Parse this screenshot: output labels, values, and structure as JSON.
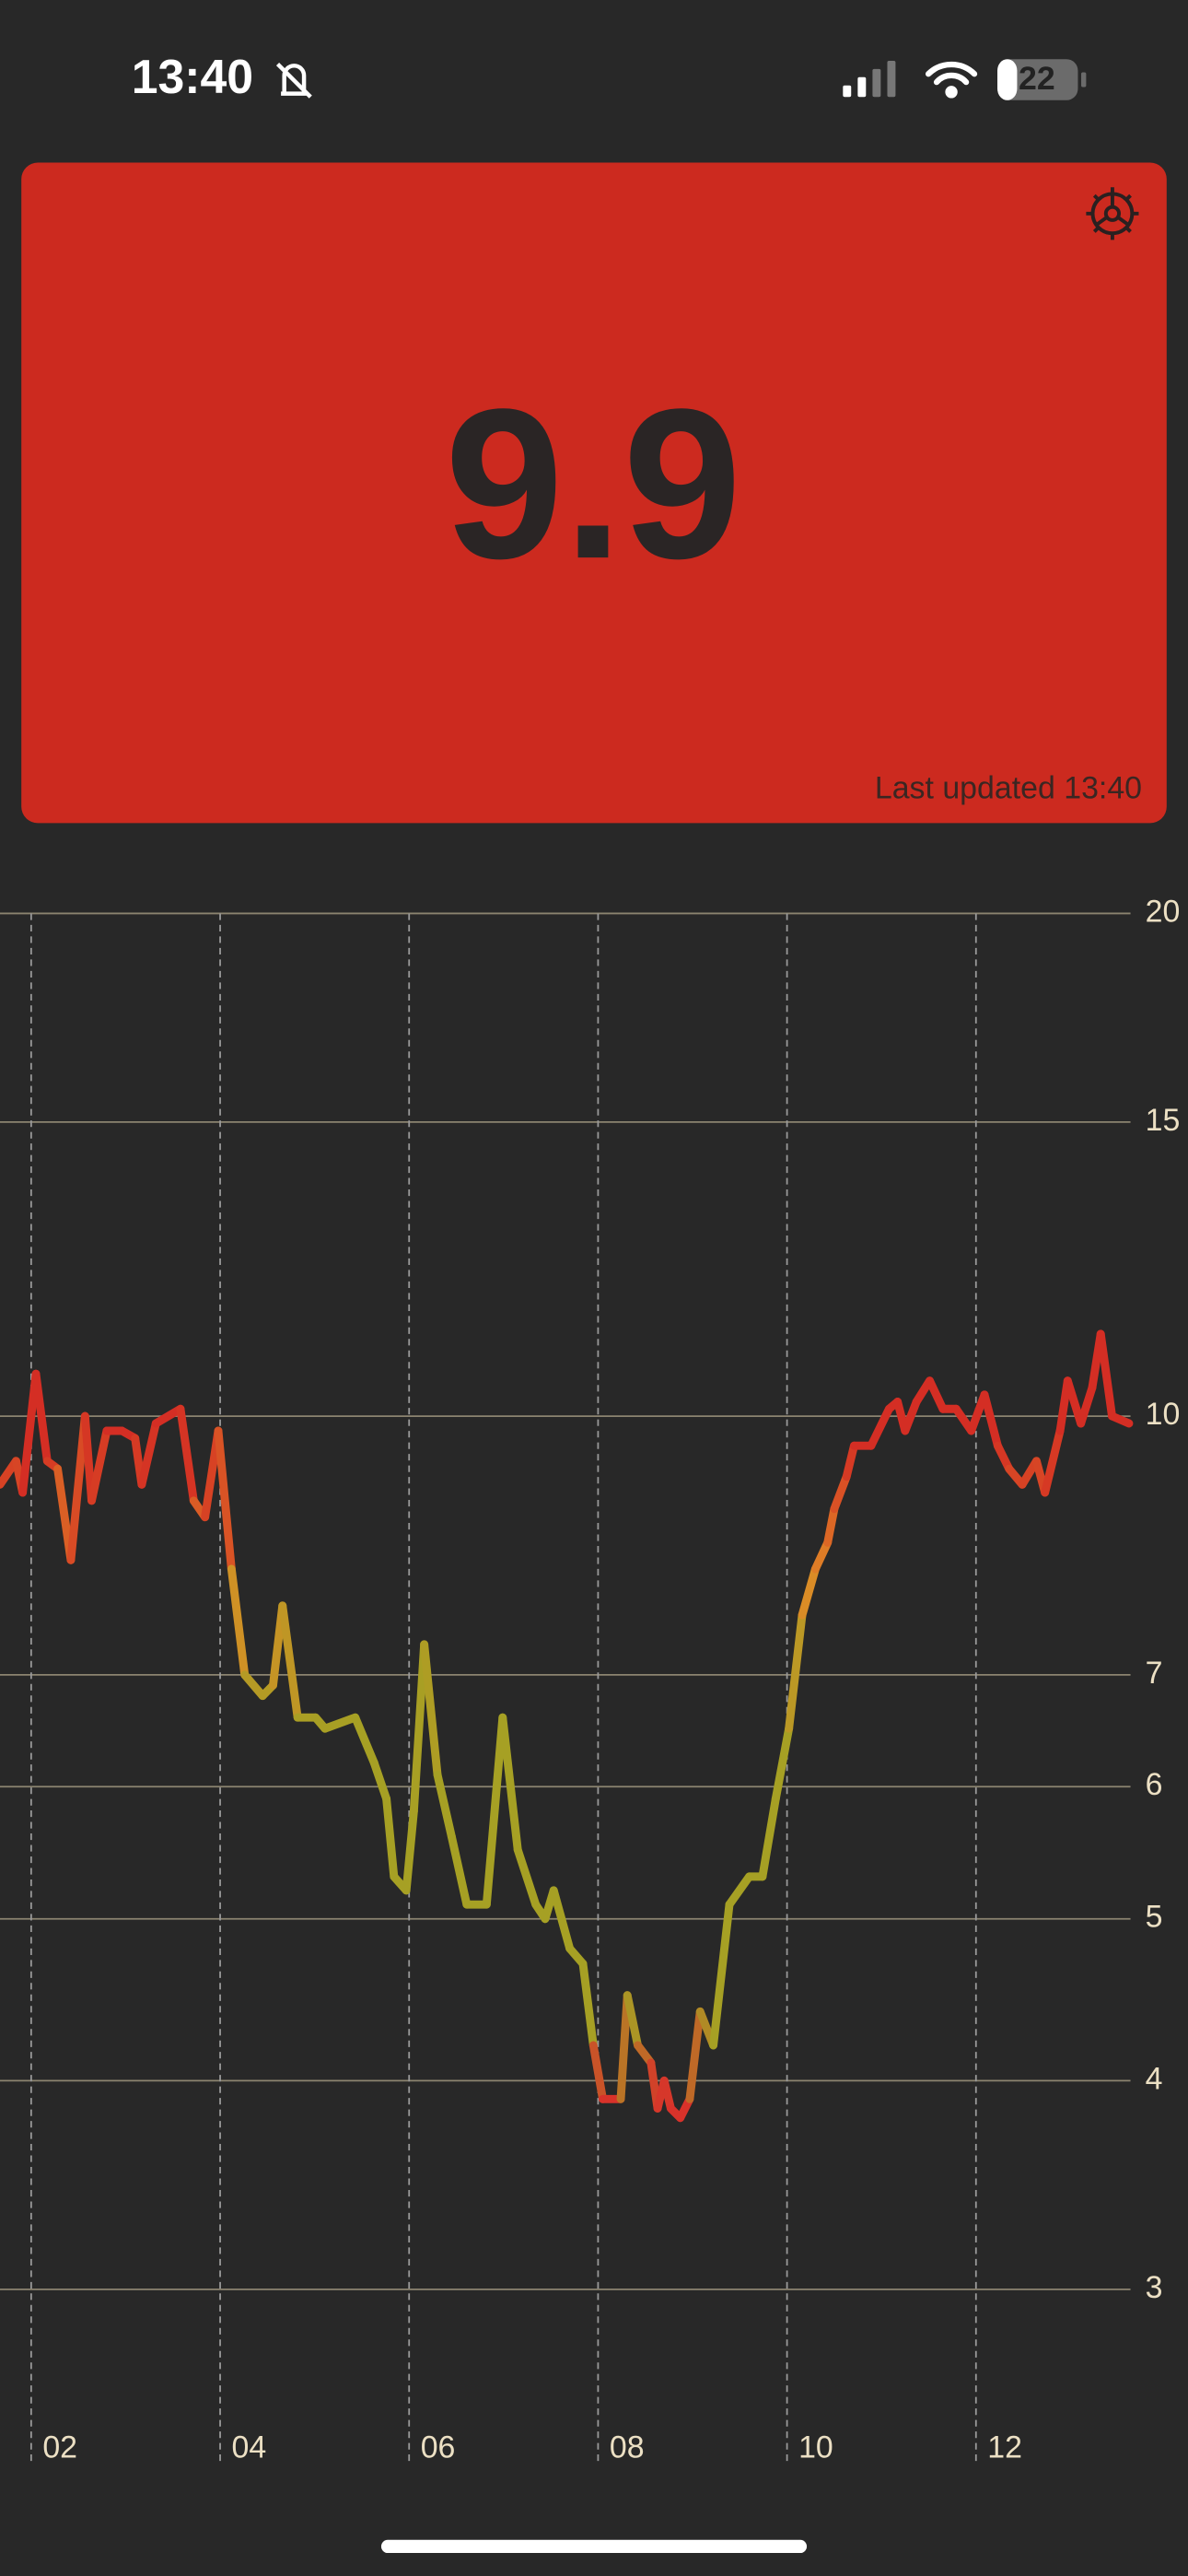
{
  "status_bar": {
    "time": "13:40",
    "battery": "22"
  },
  "card": {
    "value": 9.9,
    "updated": "Last updated 13:40"
  },
  "chart_data": {
    "type": "line",
    "log_y": true,
    "grid": true,
    "x": [
      1.67,
      1.84,
      1.91,
      2.05,
      2.17,
      2.28,
      2.42,
      2.57,
      2.64,
      2.8,
      2.96,
      3.1,
      3.17,
      3.32,
      3.58,
      3.72,
      3.84,
      3.98,
      4.12,
      4.26,
      4.45,
      4.56,
      4.66,
      4.82,
      5.01,
      5.11,
      5.43,
      5.63,
      5.76,
      5.84,
      5.97,
      6.05,
      6.16,
      6.3,
      6.45,
      6.61,
      6.82,
      6.99,
      7.15,
      7.34,
      7.44,
      7.53,
      7.7,
      7.84,
      7.95,
      8.05,
      8.24,
      8.31,
      8.42,
      8.56,
      8.63,
      8.7,
      8.77,
      8.87,
      8.97,
      9.08,
      9.22,
      9.39,
      9.6,
      9.74,
      9.88,
      10.02,
      10.16,
      10.3,
      10.43,
      10.5,
      10.63,
      10.71,
      10.89,
      11.08,
      11.17,
      11.25,
      11.37,
      11.51,
      11.65,
      11.79,
      11.95,
      12.09,
      12.23,
      12.35,
      12.49,
      12.64,
      12.73,
      12.89,
      12.97,
      13.11,
      13.23,
      13.32,
      13.44,
      13.62
    ],
    "values": [
      9.1,
      9.4,
      9.0,
      10.6,
      9.4,
      9.3,
      8.2,
      10.0,
      8.9,
      9.8,
      9.8,
      9.7,
      9.1,
      9.9,
      10.1,
      8.9,
      8.7,
      9.8,
      8.1,
      7.0,
      6.8,
      6.9,
      7.7,
      6.6,
      6.6,
      6.5,
      6.6,
      6.2,
      5.9,
      5.3,
      5.2,
      5.8,
      7.3,
      6.1,
      5.6,
      5.1,
      5.1,
      6.6,
      5.5,
      5.1,
      5.0,
      5.2,
      4.8,
      4.7,
      4.2,
      3.9,
      3.9,
      4.5,
      4.2,
      4.1,
      3.85,
      4.0,
      3.85,
      3.8,
      3.9,
      4.4,
      4.2,
      5.1,
      5.3,
      5.3,
      5.9,
      6.5,
      7.6,
      8.1,
      8.4,
      8.8,
      9.2,
      9.6,
      9.6,
      10.1,
      10.2,
      9.8,
      10.2,
      10.5,
      10.1,
      10.1,
      9.8,
      10.3,
      9.6,
      9.3,
      9.1,
      9.4,
      9.0,
      9.8,
      10.5,
      9.9,
      10.4,
      11.2,
      10.0,
      9.9
    ],
    "color_scale": [
      [
        3.9,
        "#d8322a"
      ],
      [
        4.4,
        "#a6a024"
      ],
      [
        6.5,
        "#a6a024"
      ],
      [
        8.0,
        "#e08a26"
      ],
      [
        9.6,
        "#d42e24"
      ]
    ],
    "xlim": [
      1.67,
      13.67
    ],
    "xticks": [
      {
        "value": 2,
        "label": "02"
      },
      {
        "value": 4,
        "label": "04"
      },
      {
        "value": 6,
        "label": "06"
      },
      {
        "value": 8,
        "label": "08"
      },
      {
        "value": 10,
        "label": "10"
      },
      {
        "value": 12,
        "label": "12"
      }
    ],
    "ylim": [
      2.5,
      20
    ],
    "yticks": [
      3,
      4,
      5,
      6,
      7,
      10,
      15,
      20
    ]
  }
}
